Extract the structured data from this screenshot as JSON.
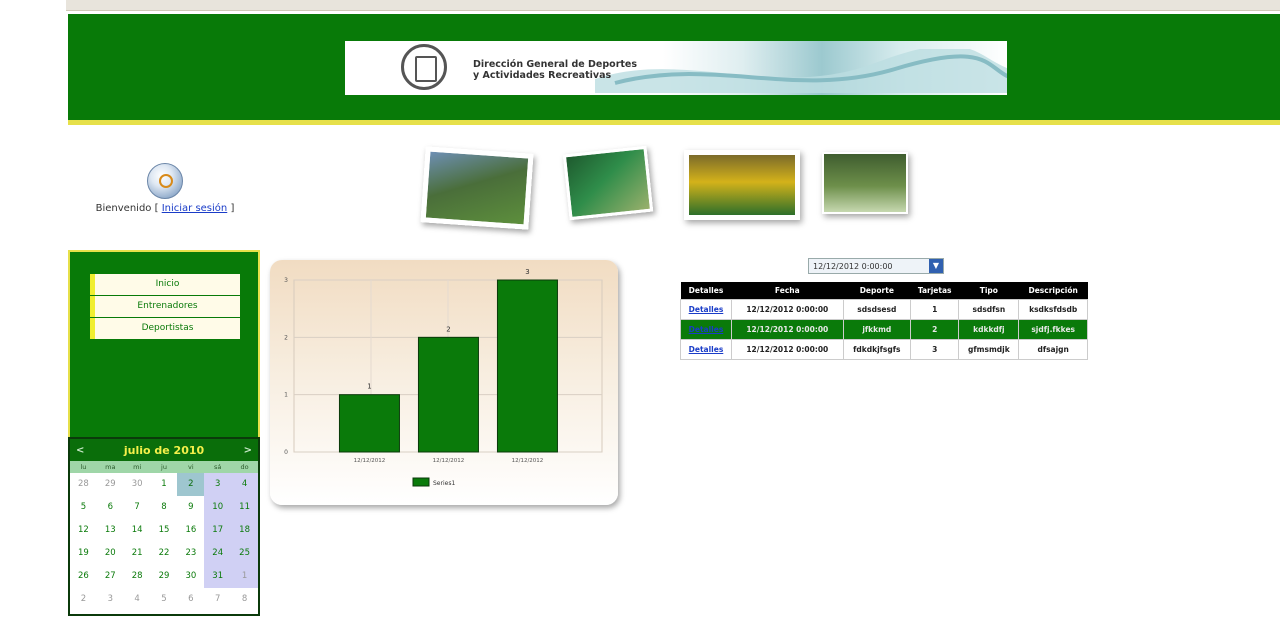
{
  "banner": {
    "line1": "Dirección General de Deportes",
    "line2": "y Actividades Recreativas"
  },
  "welcome": {
    "text": "Bienvenido",
    "open": "[",
    "link": "Iniciar sesión",
    "close": "]"
  },
  "menu": [
    "Inicio",
    "Entrenadores",
    "Deportistas"
  ],
  "calendar": {
    "prev": "<",
    "next": ">",
    "title": "julio de 2010",
    "day_names": [
      "lu",
      "ma",
      "mi",
      "ju",
      "vi",
      "sá",
      "do"
    ],
    "weeks": [
      [
        "28",
        "29",
        "30",
        "1",
        "2",
        "3",
        "4"
      ],
      [
        "5",
        "6",
        "7",
        "8",
        "9",
        "10",
        "11"
      ],
      [
        "12",
        "13",
        "14",
        "15",
        "16",
        "17",
        "18"
      ],
      [
        "19",
        "20",
        "21",
        "22",
        "23",
        "24",
        "25"
      ],
      [
        "26",
        "27",
        "28",
        "29",
        "30",
        "31",
        "1"
      ],
      [
        "2",
        "3",
        "4",
        "5",
        "6",
        "7",
        "8"
      ]
    ],
    "selected": "2"
  },
  "chart_data": {
    "type": "bar",
    "categories": [
      "12/12/2012",
      "12/12/2012",
      "12/12/2012"
    ],
    "values": [
      1,
      2,
      3
    ],
    "series_name": "Series1",
    "yticks": [
      "0",
      "1",
      "2",
      "3"
    ],
    "ylim": [
      0,
      3
    ],
    "color": "#0a7a0a",
    "grid": true,
    "legend": "bottom"
  },
  "date_filter": {
    "value": "12/12/2012 0:00:00",
    "arrow": "▼"
  },
  "table": {
    "headers": [
      "Detalles",
      "Fecha",
      "Deporte",
      "Tarjetas",
      "Tipo",
      "Descripción"
    ],
    "rows": [
      [
        "Detalles",
        "12/12/2012 0:00:00",
        "sdsdsesd",
        "1",
        "sdsdfsn",
        "ksdksfdsdb"
      ],
      [
        "Detalles",
        "12/12/2012 0:00:00",
        "jfkkmd",
        "2",
        "kdkkdfj",
        "sjdfj.fkkes"
      ],
      [
        "Detalles",
        "12/12/2012 0:00:00",
        "fdkdkjfsgfs",
        "3",
        "gfmsmdjk",
        "dfsajgn"
      ]
    ]
  }
}
